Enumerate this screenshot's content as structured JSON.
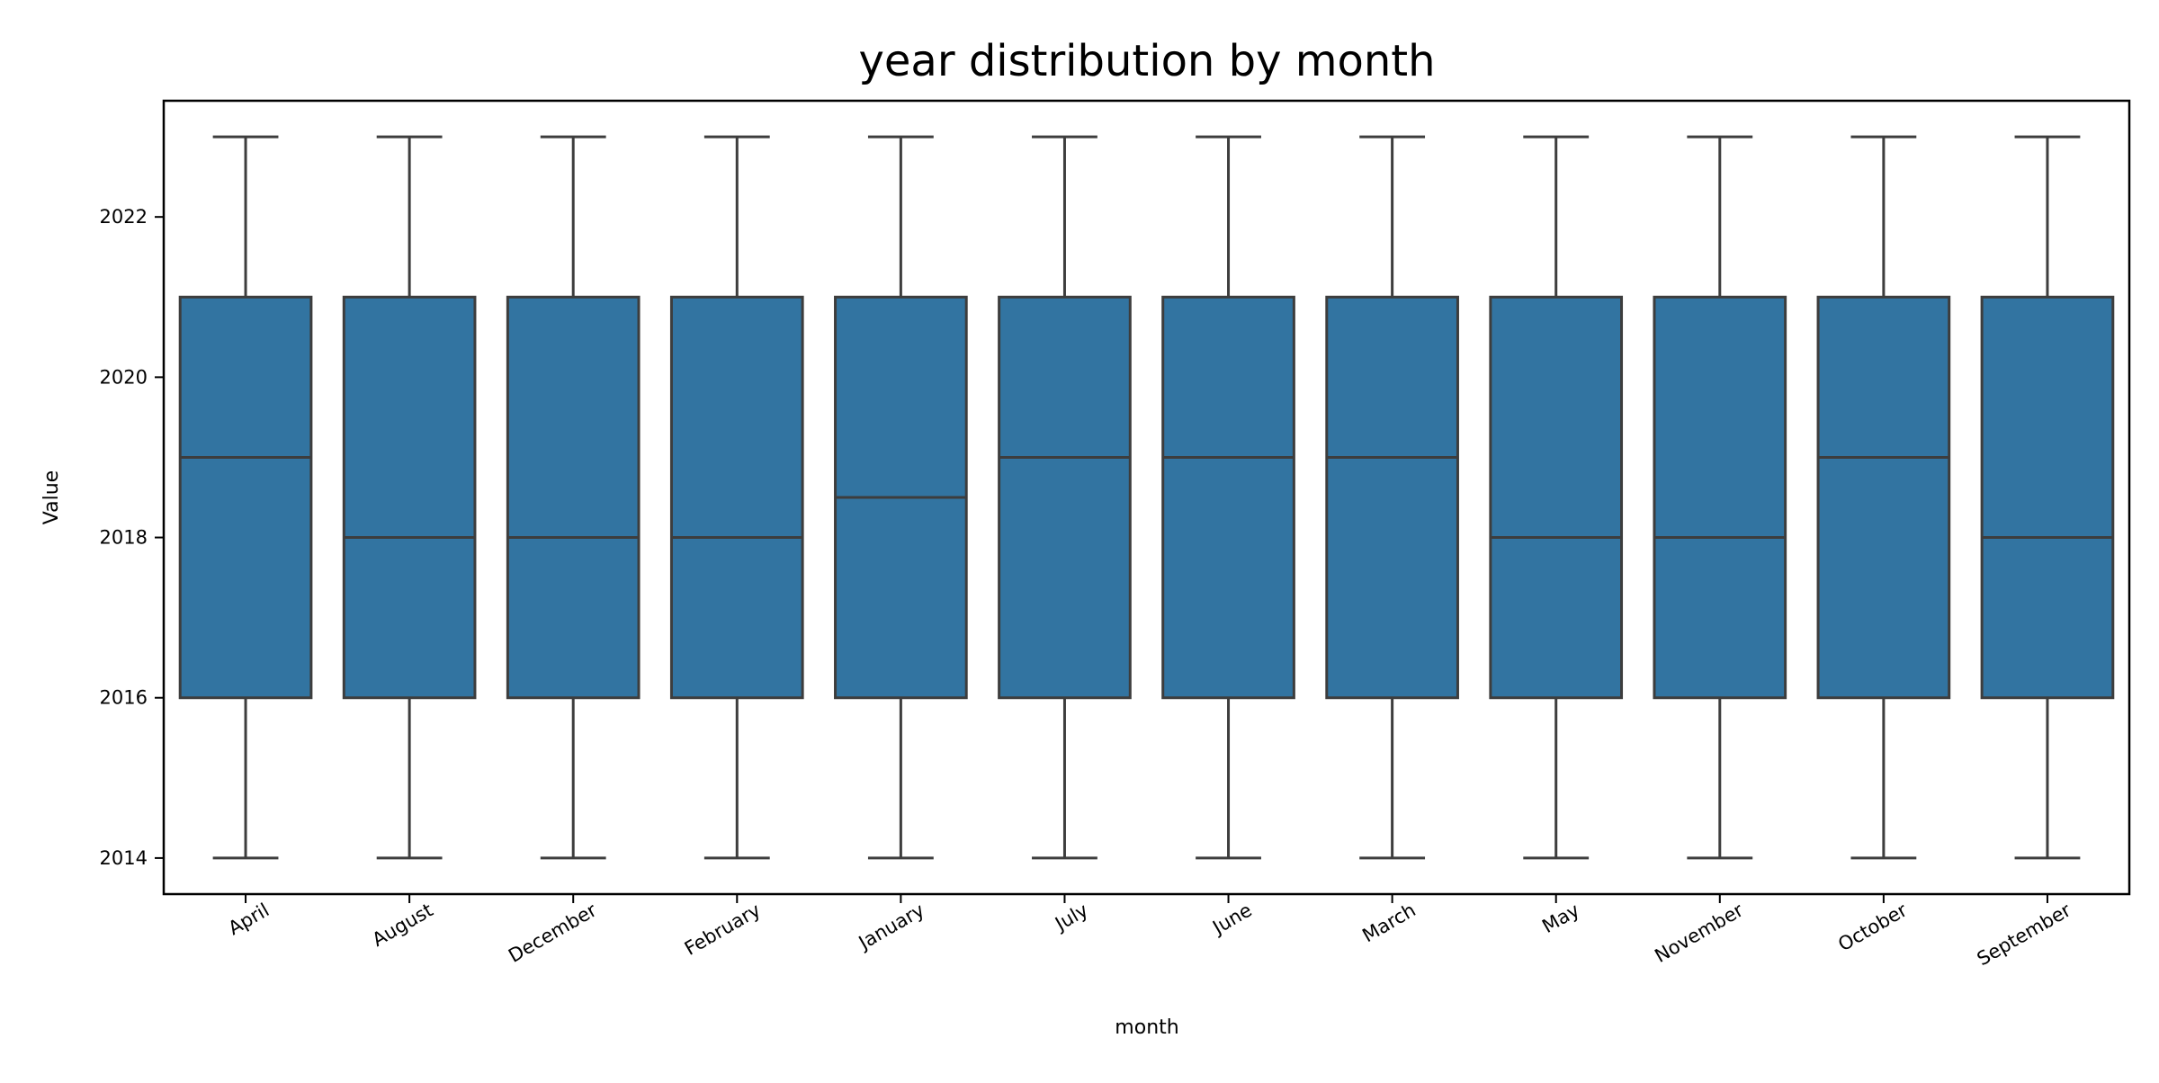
{
  "chart_data": {
    "type": "box",
    "title": "year distribution by month",
    "xlabel": "month",
    "ylabel": "Value",
    "ylim": [
      2013.55,
      2023.45
    ],
    "yticks": [
      2014,
      2016,
      2018,
      2020,
      2022
    ],
    "grid": false,
    "colors": {
      "box_fill": "#3274a1",
      "line": "#3d3d3d",
      "frame": "#000000",
      "background": "#ffffff"
    },
    "categories": [
      "April",
      "August",
      "December",
      "February",
      "January",
      "July",
      "June",
      "March",
      "May",
      "November",
      "October",
      "September"
    ],
    "boxes": [
      {
        "category": "April",
        "min": 2014,
        "q1": 2016,
        "median": 2019,
        "q3": 2021,
        "max": 2023
      },
      {
        "category": "August",
        "min": 2014,
        "q1": 2016,
        "median": 2018,
        "q3": 2021,
        "max": 2023
      },
      {
        "category": "December",
        "min": 2014,
        "q1": 2016,
        "median": 2018,
        "q3": 2021,
        "max": 2023
      },
      {
        "category": "February",
        "min": 2014,
        "q1": 2016,
        "median": 2018,
        "q3": 2021,
        "max": 2023
      },
      {
        "category": "January",
        "min": 2014,
        "q1": 2016,
        "median": 2018.5,
        "q3": 2021,
        "max": 2023
      },
      {
        "category": "July",
        "min": 2014,
        "q1": 2016,
        "median": 2019,
        "q3": 2021,
        "max": 2023
      },
      {
        "category": "June",
        "min": 2014,
        "q1": 2016,
        "median": 2019,
        "q3": 2021,
        "max": 2023
      },
      {
        "category": "March",
        "min": 2014,
        "q1": 2016,
        "median": 2019,
        "q3": 2021,
        "max": 2023
      },
      {
        "category": "May",
        "min": 2014,
        "q1": 2016,
        "median": 2018,
        "q3": 2021,
        "max": 2023
      },
      {
        "category": "November",
        "min": 2014,
        "q1": 2016,
        "median": 2018,
        "q3": 2021,
        "max": 2023
      },
      {
        "category": "October",
        "min": 2014,
        "q1": 2016,
        "median": 2019,
        "q3": 2021,
        "max": 2023
      },
      {
        "category": "September",
        "min": 2014,
        "q1": 2016,
        "median": 2018,
        "q3": 2021,
        "max": 2023
      }
    ]
  }
}
